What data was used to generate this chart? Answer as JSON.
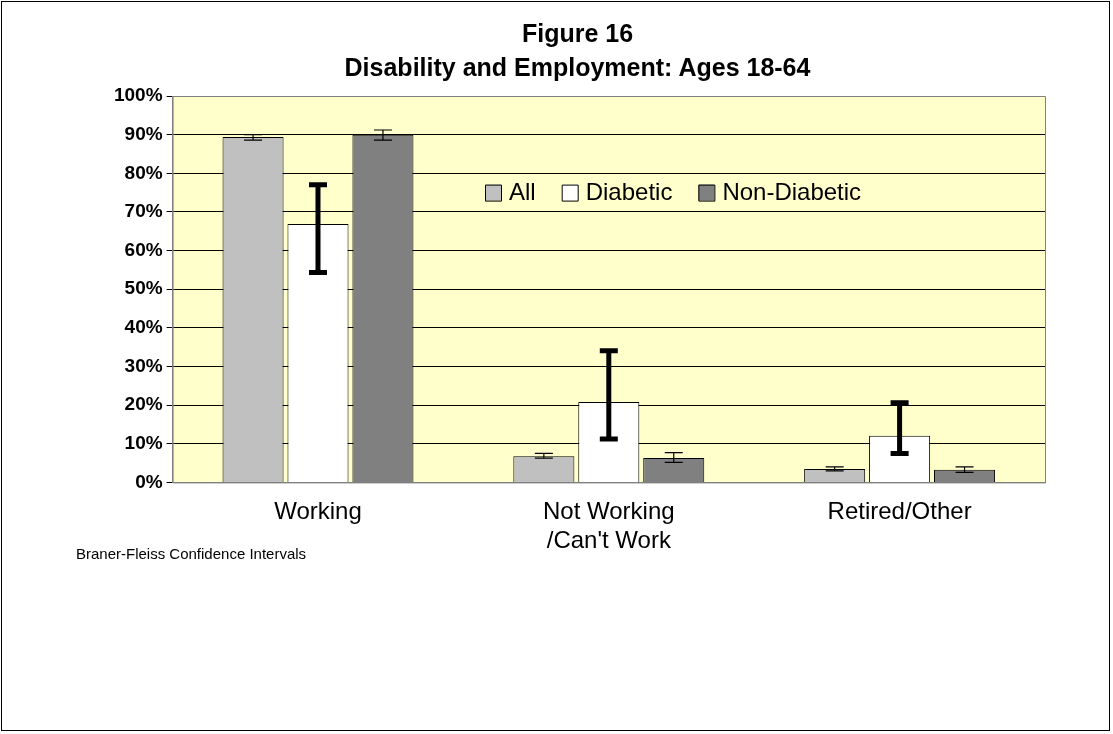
{
  "chart_data": {
    "type": "bar",
    "title": "Figure 16",
    "subtitle": "Disability and Employment: Ages 18-64",
    "categories": [
      "Working",
      "Not Working\n/Can't Work",
      "Retired/Other"
    ],
    "series": [
      {
        "name": "All",
        "color": "#c0c0c0",
        "values": [
          89.4,
          6.8,
          3.5
        ],
        "errors": [
          [
            88.6,
            90.0
          ],
          [
            6.3,
            7.5
          ],
          [
            3.0,
            4.0
          ]
        ]
      },
      {
        "name": "Diabetic",
        "color": "#ffffff",
        "values": [
          66.9,
          20.8,
          12.1
        ],
        "errors": [
          [
            54.3,
            77.0
          ],
          [
            11.2,
            34.1
          ],
          [
            7.5,
            20.6
          ]
        ]
      },
      {
        "name": "Non-Diabetic",
        "color": "#808080",
        "values": [
          90.0,
          6.3,
          3.3
        ],
        "errors": [
          [
            88.6,
            91.2
          ],
          [
            5.2,
            7.7
          ],
          [
            2.6,
            4.0
          ]
        ]
      }
    ],
    "ylim": [
      0,
      100
    ],
    "yticks": [
      {
        "value": 0,
        "label": "0%"
      },
      {
        "value": 10,
        "label": "10%"
      },
      {
        "value": 20,
        "label": "20%"
      },
      {
        "value": 30,
        "label": "30%"
      },
      {
        "value": 40,
        "label": "40%"
      },
      {
        "value": 50,
        "label": "50%"
      },
      {
        "value": 60,
        "label": "60%"
      },
      {
        "value": 70,
        "label": "70%"
      },
      {
        "value": 80,
        "label": "80%"
      },
      {
        "value": 90,
        "label": "90%"
      },
      {
        "value": 100,
        "label": "100%"
      }
    ],
    "grid": "y",
    "legend": "top right",
    "annotations": [
      "Braner-Fleiss Confidence Intervals"
    ]
  }
}
